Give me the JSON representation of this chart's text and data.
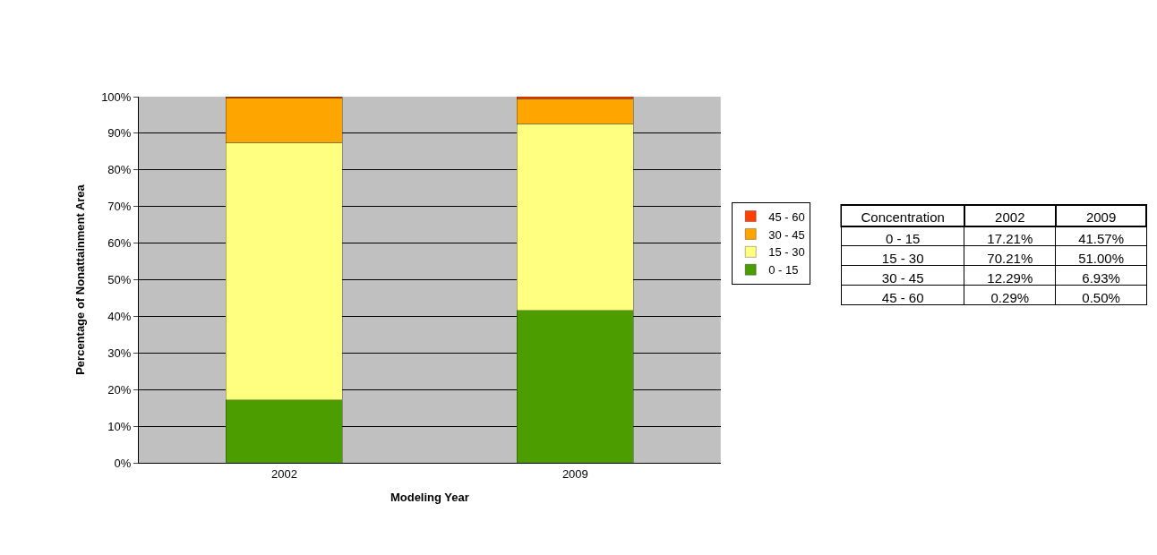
{
  "chart_data": {
    "type": "bar",
    "stacked": true,
    "xlabel": "Modeling Year",
    "ylabel": "Percentage of Nonattainment Area",
    "categories": [
      "2002",
      "2009"
    ],
    "series": [
      {
        "name": "0 - 15",
        "color": "#4c9e00",
        "values": [
          17.21,
          41.57
        ]
      },
      {
        "name": "15 - 30",
        "color": "#ffff80",
        "values": [
          70.21,
          51.0
        ]
      },
      {
        "name": "30 - 45",
        "color": "#ffa500",
        "values": [
          12.29,
          6.93
        ]
      },
      {
        "name": "45 - 60",
        "color": "#ff4000",
        "values": [
          0.29,
          0.5
        ]
      }
    ],
    "annotations": [
      "Concentration",
      "2002",
      "2009",
      "0 - 15",
      "17.21%",
      "41.57%",
      "15 - 30",
      "70.21%",
      "51.00%",
      "30 - 45",
      "12.29%",
      "6.93%",
      "45 - 60",
      "0.29%",
      "0.50%"
    ],
    "ylim": [
      0,
      100
    ],
    "yticks": [
      {
        "value": 0,
        "label": "0%"
      },
      {
        "value": 10,
        "label": "10%"
      },
      {
        "value": 20,
        "label": "20%"
      },
      {
        "value": 30,
        "label": "30%"
      },
      {
        "value": 40,
        "label": "40%"
      },
      {
        "value": 50,
        "label": "50%"
      },
      {
        "value": 60,
        "label": "60%"
      },
      {
        "value": 70,
        "label": "70%"
      },
      {
        "value": 80,
        "label": "80%"
      },
      {
        "value": 90,
        "label": "90%"
      },
      {
        "value": 100,
        "label": "100%"
      }
    ],
    "grid": "y",
    "legend": "right"
  }
}
